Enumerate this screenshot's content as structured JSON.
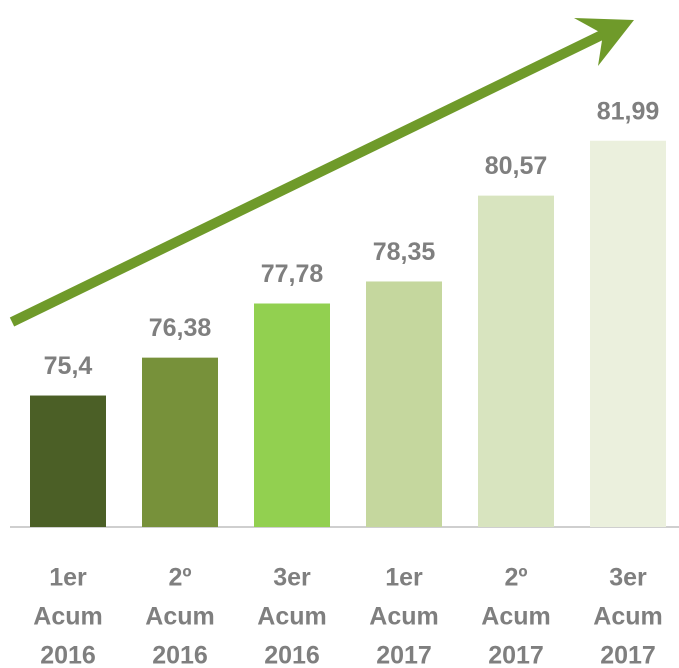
{
  "chart_data": {
    "type": "bar",
    "categories": [
      [
        "1er",
        "Acum",
        "2016"
      ],
      [
        "2º",
        "Acum",
        "2016"
      ],
      [
        "3er",
        "Acum",
        "2016"
      ],
      [
        "1er",
        "Acum",
        "2017"
      ],
      [
        "2º",
        "Acum",
        "2017"
      ],
      [
        "3er",
        "Acum",
        "2017"
      ]
    ],
    "values": [
      75.4,
      76.38,
      77.78,
      78.35,
      80.57,
      81.99
    ],
    "value_labels": [
      "75,4",
      "76,38",
      "77,78",
      "78,35",
      "80,57",
      "81,99"
    ],
    "colors": [
      "#4b5f26",
      "#77913a",
      "#92d050",
      "#c5d79e",
      "#d8e4bf",
      "#ebf0dd"
    ],
    "ylim": [
      72,
      84
    ]
  }
}
